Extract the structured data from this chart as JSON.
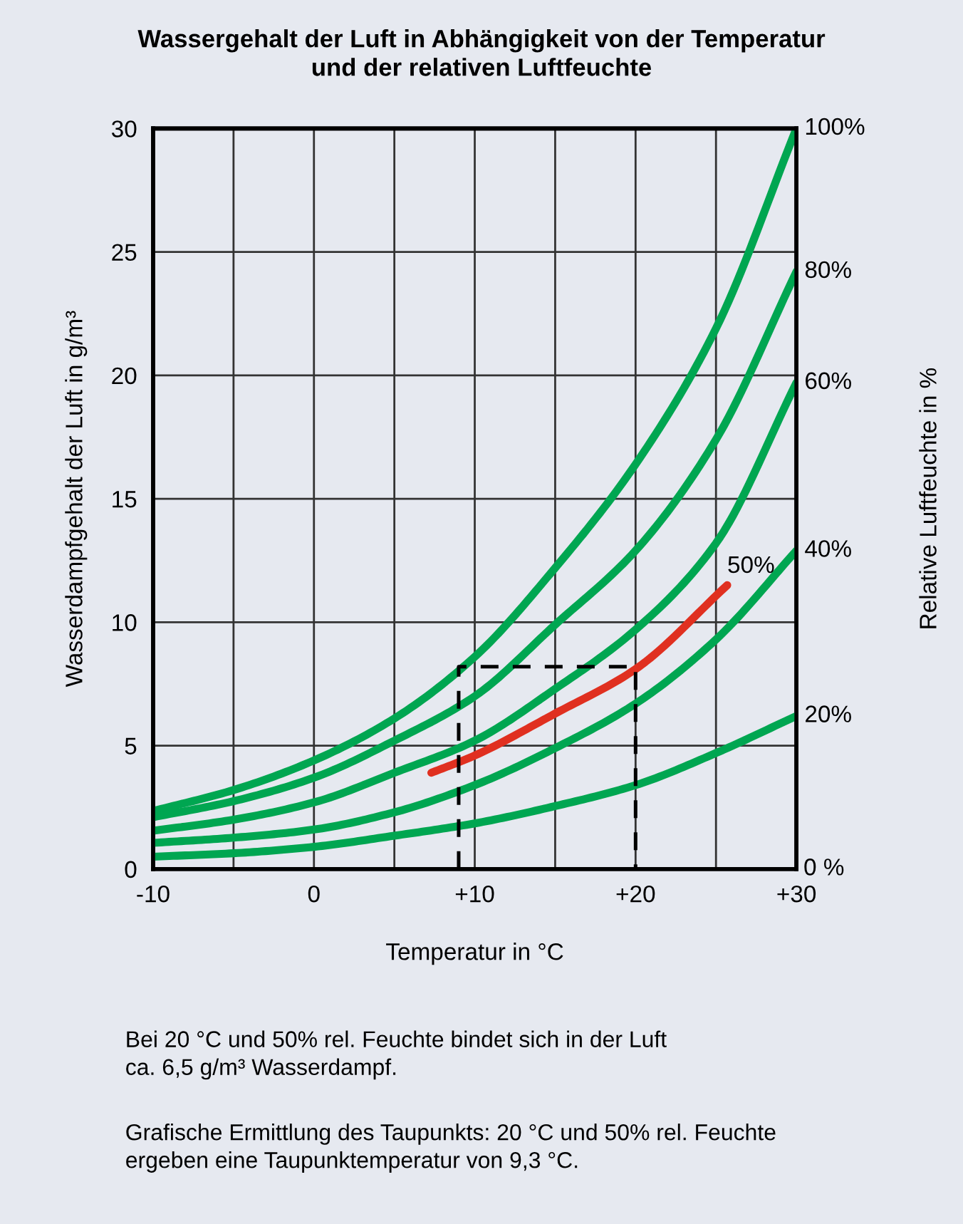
{
  "chart_data": {
    "type": "line",
    "title": "Wassergehalt der Luft in Abhängigkeit von der Temperatur\nund der relativen Luftfeuchte",
    "xlabel": "Temperatur in °C",
    "ylabel": "Wasserdampfgehalt der Luft in g/m³",
    "y2label": "Relative Luftfeuchte in %",
    "x": [
      -10,
      -5,
      0,
      5,
      10,
      15,
      20,
      25,
      30
    ],
    "series": [
      {
        "name": "100%",
        "color": "#00a651",
        "values": [
          2.35,
          3.2,
          4.4,
          6.1,
          8.6,
          12.2,
          16.4,
          21.9,
          30
        ]
      },
      {
        "name": "80%",
        "color": "#00a651",
        "values": [
          2.1,
          2.75,
          3.7,
          5.2,
          7.0,
          9.9,
          12.9,
          17.4,
          24.2
        ]
      },
      {
        "name": "60%",
        "color": "#00a651",
        "values": [
          1.55,
          2.0,
          2.7,
          3.9,
          5.2,
          7.3,
          9.7,
          13.2,
          19.7
        ]
      },
      {
        "name": "40%",
        "color": "#00a651",
        "values": [
          1.06,
          1.27,
          1.6,
          2.3,
          3.4,
          4.9,
          6.7,
          9.3,
          12.9
        ]
      },
      {
        "name": "20%",
        "color": "#00a651",
        "values": [
          0.5,
          0.64,
          0.9,
          1.35,
          1.85,
          2.55,
          3.4,
          4.7,
          6.2
        ]
      },
      {
        "name": "50%",
        "color": "#e03020",
        "x": [
          7.3,
          10,
          15,
          20,
          25.7
        ],
        "values": [
          3.9,
          4.6,
          6.3,
          8.1,
          11.5
        ]
      },
      {
        "color": "#000000",
        "line_style": "dashed",
        "x": [
          9,
          9,
          20,
          20
        ],
        "values": [
          0,
          8.2,
          8.2,
          0
        ]
      }
    ],
    "xlim": [
      -10,
      30
    ],
    "xticks": [
      {
        "value": -10,
        "label": "-10"
      },
      {
        "value": -5,
        "label": null
      },
      0,
      {
        "value": 5,
        "label": null
      },
      {
        "value": 10,
        "label": "+10"
      },
      {
        "value": 15,
        "label": null
      },
      {
        "value": 20,
        "label": "+20"
      },
      {
        "value": 25,
        "label": null
      },
      {
        "value": 30,
        "label": "+30"
      }
    ],
    "ylim": [
      0,
      30
    ],
    "yticks": [
      0,
      5,
      10,
      15,
      20,
      25,
      30
    ],
    "grid": true,
    "line_style": "solid",
    "marker": "none",
    "annotations": [
      "0 %",
      "Bei 20 °C und 50% rel. Feuchte bindet sich in der Luft\nca. 6,5 g/m³ Wasserdampf.",
      "Grafische Ermittlung des Taupunkts: 20 °C und 50% rel. Feuchte\nergeben eine Taupunktemperatur von 9,3 °C."
    ]
  }
}
